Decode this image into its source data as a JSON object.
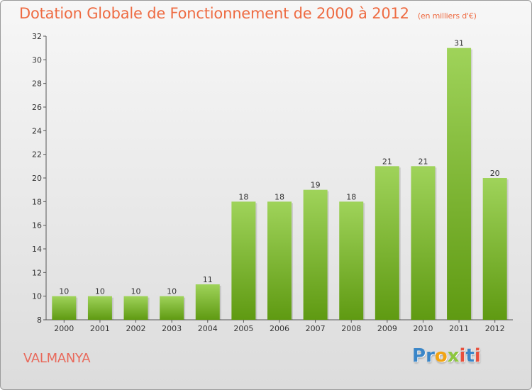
{
  "title": "Dotation Globale de Fonctionnement de 2000 à 2012",
  "subtitle": "(en milliers d'€)",
  "location": "VALMANYA",
  "logo": {
    "text": "Proxiti",
    "letters": [
      "P",
      "r",
      "o",
      "x",
      "i",
      "t",
      "i"
    ],
    "colors": [
      "#3a86c8",
      "#3a86c8",
      "#f2a413",
      "#8dc63f",
      "#e84f3c",
      "#3a86c8",
      "#e84f3c"
    ]
  },
  "colors": {
    "title": "#ee6b42",
    "bar_top": "#9fd35a",
    "bar_bottom": "#5f9a12",
    "location": "#e8695b"
  },
  "chart_data": {
    "type": "bar",
    "categories": [
      "2000",
      "2001",
      "2002",
      "2003",
      "2004",
      "2005",
      "2006",
      "2007",
      "2008",
      "2009",
      "2010",
      "2011",
      "2012"
    ],
    "values": [
      10,
      10,
      10,
      10,
      11,
      18,
      18,
      19,
      18,
      21,
      21,
      31,
      20
    ],
    "title": "Dotation Globale de Fonctionnement de 2000 à 2012",
    "subtitle": "(en milliers d'€)",
    "xlabel": "",
    "ylabel": "",
    "ylim": [
      8,
      32
    ],
    "yticks": [
      8,
      10,
      12,
      14,
      16,
      18,
      20,
      22,
      24,
      26,
      28,
      30,
      32
    ],
    "grid": false,
    "data_labels": true
  }
}
